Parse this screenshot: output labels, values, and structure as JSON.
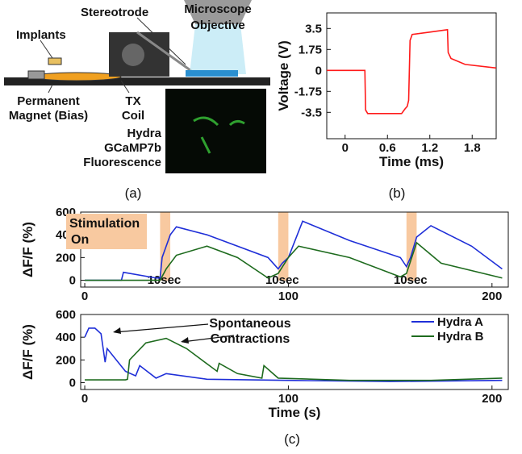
{
  "diagram": {
    "labels": [
      [
        "Implants"
      ],
      [
        "Stereotrode"
      ],
      [
        "Microscope",
        "Objective"
      ],
      [
        "Permanent",
        "Magnet (Bias)"
      ],
      [
        "TX",
        "Coil"
      ],
      [
        "Hydra",
        "GCaMP7b",
        "Fluorescence"
      ]
    ]
  },
  "captions": [
    "(a)",
    "(b)",
    "(c)"
  ],
  "chart_data": [
    {
      "type": "line",
      "xlabel": "Time (ms)",
      "ylabel": "Voltage (V)",
      "xlim": [
        -0.26,
        2.14
      ],
      "ylim": [
        -5.7,
        4.8
      ],
      "xticks": [
        0,
        0.6,
        1.2,
        1.8
      ],
      "yticks": [
        3.5,
        1.75,
        0,
        -1.75,
        -3.5
      ],
      "series": [
        {
          "color": "#ff1a1a",
          "x": [
            -0.26,
            0.28,
            0.29,
            0.32,
            0.8,
            0.85,
            0.88,
            0.9,
            0.92,
            0.95,
            1.2,
            1.45,
            1.46,
            1.5,
            1.7,
            2.14
          ],
          "values": [
            0,
            0,
            -3.3,
            -3.6,
            -3.6,
            -3.2,
            -3.0,
            -2.5,
            2.5,
            3.0,
            3.2,
            3.4,
            1.5,
            1.0,
            0.5,
            0.2
          ]
        }
      ]
    },
    {
      "type": "line",
      "ylabel": "ΔF/F (%)",
      "annotation": [
        "Stimulation",
        "On"
      ],
      "xlim": [
        -2,
        208
      ],
      "ylim": [
        -60,
        600
      ],
      "xticks": [
        0,
        100,
        200
      ],
      "yticks": [
        0,
        200,
        400,
        600
      ],
      "stimulation": [
        [
          37,
          42
        ],
        [
          95,
          100
        ],
        [
          158,
          163
        ]
      ],
      "stim_color": "#f8c9a0",
      "band_labels": [
        "10sec",
        "10sec",
        "10sec"
      ],
      "series": [
        {
          "color": "#1f2fd8",
          "x": [
            0,
            18,
            19,
            35,
            37,
            38,
            40,
            42,
            45,
            60,
            90,
            95,
            97,
            100,
            107,
            130,
            155,
            158,
            160,
            163,
            170,
            190,
            205
          ],
          "values": [
            0,
            0,
            70,
            20,
            20,
            200,
            300,
            400,
            470,
            400,
            200,
            100,
            150,
            200,
            520,
            350,
            200,
            120,
            200,
            380,
            480,
            300,
            100
          ]
        },
        {
          "color": "#1e6b1e",
          "x": [
            0,
            37,
            40,
            45,
            60,
            75,
            90,
            95,
            100,
            105,
            130,
            155,
            158,
            163,
            175,
            205
          ],
          "values": [
            0,
            0,
            100,
            220,
            300,
            200,
            20,
            60,
            200,
            300,
            200,
            30,
            60,
            330,
            150,
            20
          ]
        }
      ]
    },
    {
      "type": "line",
      "ylabel": "ΔF/F (%)",
      "xlabel": "Time (s)",
      "annotation": [
        "Spontaneous",
        "Contractions"
      ],
      "legend": "upper right",
      "xlim": [
        -2,
        208
      ],
      "ylim": [
        -60,
        600
      ],
      "xticks": [
        0,
        100,
        200
      ],
      "yticks": [
        0,
        200,
        400,
        600
      ],
      "series": [
        {
          "name": "Hydra A",
          "color": "#1f2fd8",
          "x": [
            0,
            2,
            5,
            8,
            10,
            11,
            20,
            25,
            27,
            35,
            40,
            60,
            100,
            150,
            205
          ],
          "values": [
            400,
            480,
            480,
            430,
            180,
            300,
            100,
            60,
            150,
            40,
            80,
            30,
            20,
            10,
            20
          ]
        },
        {
          "name": "Hydra B",
          "color": "#1e6b1e",
          "x": [
            0,
            20,
            21,
            22,
            30,
            40,
            50,
            65,
            66,
            75,
            87,
            88,
            95,
            130,
            170,
            205
          ],
          "values": [
            25,
            25,
            30,
            200,
            350,
            390,
            300,
            100,
            170,
            80,
            40,
            150,
            40,
            20,
            20,
            40
          ]
        }
      ]
    }
  ]
}
